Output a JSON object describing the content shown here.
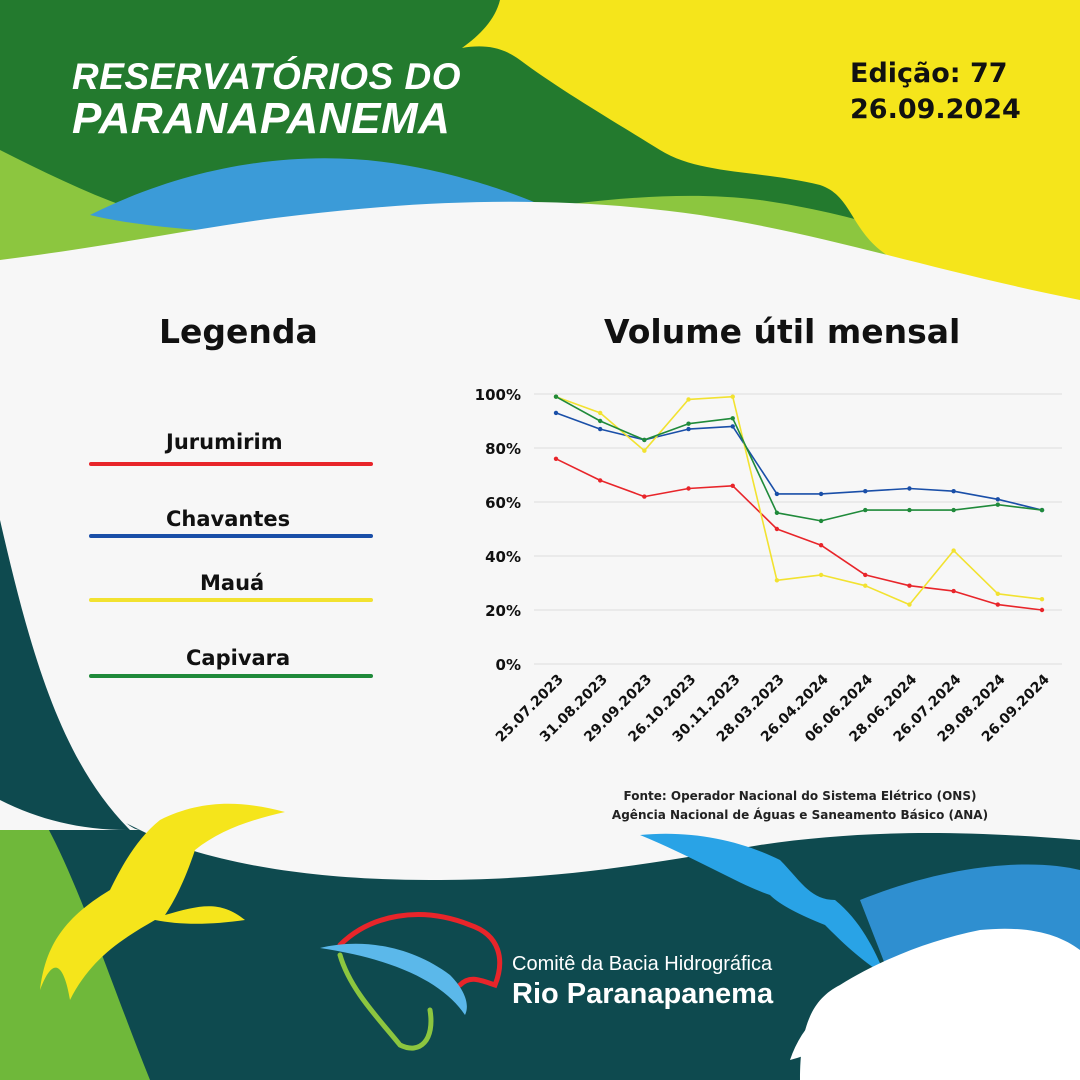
{
  "header": {
    "title_line1": "RESERVATÓRIOS DO",
    "title_line2": "PARANAPANEMA",
    "edition": "Edição: 77",
    "date": "26.09.2024"
  },
  "legend": {
    "title": "Legenda",
    "items": [
      {
        "label": "Jurumirim",
        "color": "#e8252a"
      },
      {
        "label": "Chavantes",
        "color": "#1a4fa8"
      },
      {
        "label": "Mauá",
        "color": "#f2e230"
      },
      {
        "label": "Capivara",
        "color": "#1f8a3a"
      }
    ]
  },
  "chart_data": {
    "type": "line",
    "title": "Volume útil mensal",
    "xlabel": "",
    "ylabel": "",
    "ylim": [
      0,
      100
    ],
    "yticks": [
      "0%",
      "20%",
      "40%",
      "60%",
      "80%",
      "100%"
    ],
    "grid": true,
    "categories": [
      "25.07.2023",
      "31.08.2023",
      "29.09.2023",
      "26.10.2023",
      "30.11.2023",
      "28.03.2023",
      "26.04.2024",
      "06.06.2024",
      "28.06.2024",
      "26.07.2024",
      "29.08.2024",
      "26.09.2024"
    ],
    "series": [
      {
        "name": "Jurumirim",
        "color": "#e8252a",
        "values": [
          76,
          68,
          62,
          65,
          66,
          50,
          44,
          33,
          29,
          27,
          22,
          20
        ]
      },
      {
        "name": "Chavantes",
        "color": "#1a4fa8",
        "values": [
          93,
          87,
          83,
          87,
          88,
          63,
          63,
          64,
          65,
          64,
          61,
          57
        ]
      },
      {
        "name": "Mauá",
        "color": "#f2e230",
        "values": [
          99,
          93,
          79,
          98,
          99,
          31,
          33,
          29,
          22,
          42,
          26,
          24
        ]
      },
      {
        "name": "Capivara",
        "color": "#1f8a3a",
        "values": [
          99,
          90,
          83,
          89,
          91,
          56,
          53,
          57,
          57,
          57,
          59,
          57
        ]
      }
    ]
  },
  "source": {
    "line1": "Fonte: Operador Nacional do Sistema Elétrico (ONS)",
    "line2": "Agência Nacional de Águas e Saneamento Básico (ANA)"
  },
  "footer": {
    "org_line1": "Comitê da Bacia Hidrográfica",
    "org_line2": "Rio Paranapanema"
  },
  "colors": {
    "dark_green": "#237a2e",
    "light_green": "#7cc242",
    "yellow": "#f5e51b",
    "blue": "#3b9bd8",
    "teal": "#0e4a4f"
  }
}
